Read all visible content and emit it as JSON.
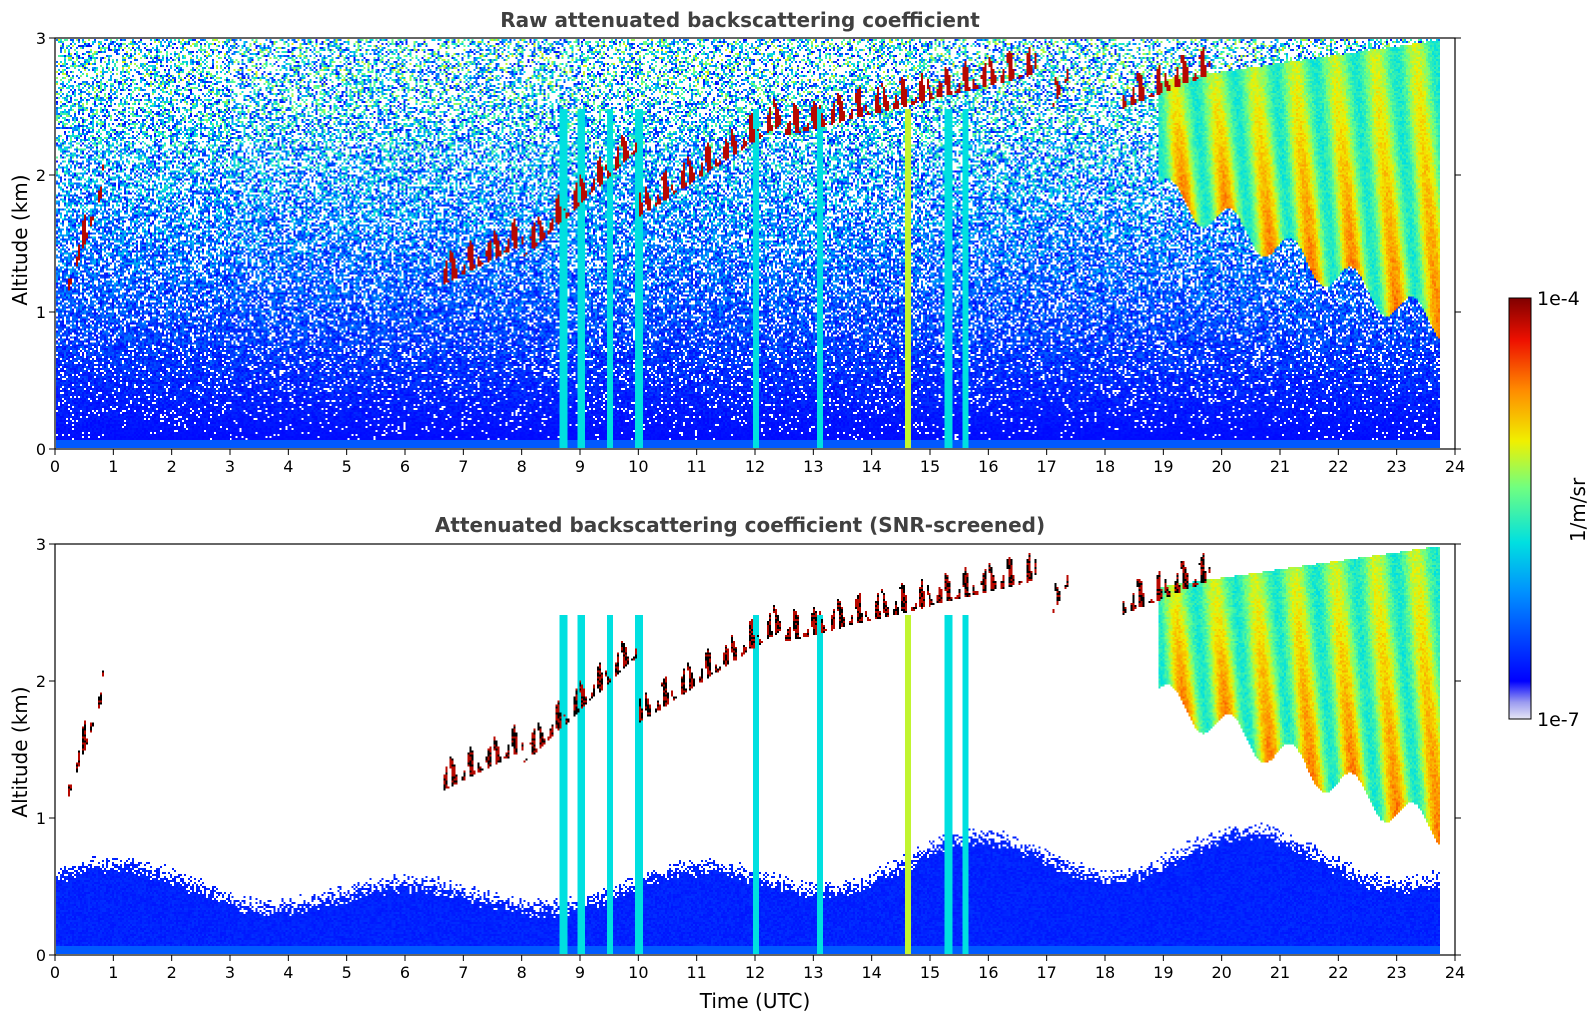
{
  "chart_data": [
    {
      "type": "heatmap",
      "title": "Raw attenuated backscattering coefficient",
      "xlabel": "",
      "ylabel": "Altitude (km)",
      "xlim": [
        0,
        24
      ],
      "ylim": [
        0,
        3
      ],
      "xticks": [
        "0",
        "1",
        "2",
        "3",
        "4",
        "5",
        "6",
        "7",
        "8",
        "9",
        "10",
        "11",
        "12",
        "13",
        "14",
        "15",
        "16",
        "17",
        "18",
        "19",
        "20",
        "21",
        "22",
        "23",
        "24"
      ],
      "yticks": [
        "0",
        "1",
        "2",
        "3"
      ],
      "scale": "log",
      "grid": false
    },
    {
      "type": "heatmap",
      "title": "Attenuated backscattering coefficient (SNR-screened)",
      "xlabel": "Time (UTC)",
      "ylabel": "Altitude (km)",
      "xlim": [
        0,
        24
      ],
      "ylim": [
        0,
        3
      ],
      "xticks": [
        "0",
        "1",
        "2",
        "3",
        "4",
        "5",
        "6",
        "7",
        "8",
        "9",
        "10",
        "11",
        "12",
        "13",
        "14",
        "15",
        "16",
        "17",
        "18",
        "19",
        "20",
        "21",
        "22",
        "23",
        "24"
      ],
      "yticks": [
        "0",
        "1",
        "2",
        "3"
      ],
      "scale": "log",
      "grid": false
    }
  ],
  "colorbar": {
    "label": "1/m/sr",
    "max_label": "1e-4",
    "min_label": "1e-7",
    "colormap": "jet",
    "range": [
      1e-07,
      0.0001
    ],
    "log": true
  },
  "data_extent_hours": 23.75,
  "cloud_base_features": [
    {
      "t0": 0.15,
      "t1": 0.8,
      "z0": 1.1,
      "z1": 1.9
    },
    {
      "t0": 6.6,
      "t1": 8.0,
      "z0": 1.2,
      "z1": 1.5
    },
    {
      "t0": 8.0,
      "t1": 10.0,
      "z0": 1.4,
      "z1": 2.2
    },
    {
      "t0": 10.0,
      "t1": 12.5,
      "z0": 1.7,
      "z1": 2.4
    },
    {
      "t0": 12.5,
      "t1": 16.8,
      "z0": 2.3,
      "z1": 2.75
    },
    {
      "t0": 17.1,
      "t1": 17.4,
      "z0": 2.5,
      "z1": 2.75
    },
    {
      "t0": 18.3,
      "t1": 19.8,
      "z0": 2.5,
      "z1": 2.75
    }
  ],
  "colors": {
    "axis": "#000000",
    "title": "#404040"
  }
}
